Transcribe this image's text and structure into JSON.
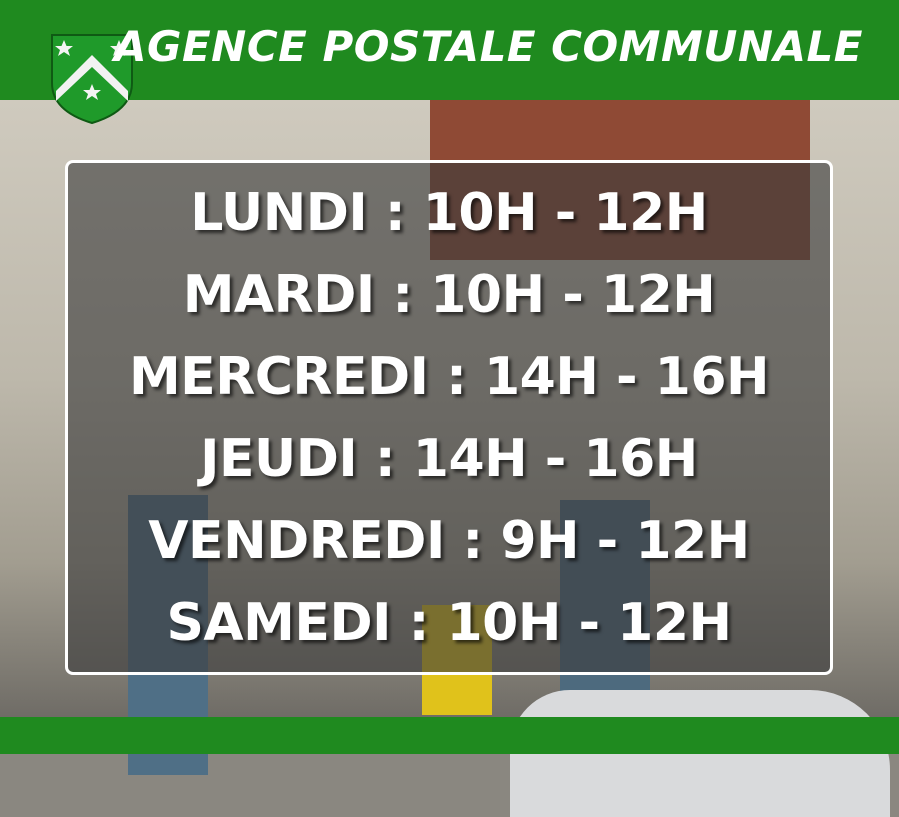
{
  "header": {
    "title": "AGENCE POSTALE COMMUNALE",
    "logo": "coat-of-arms-green-chevron-three-stars"
  },
  "colors": {
    "brand_green": "#1f8a1f",
    "text": "#ffffff"
  },
  "schedule": [
    {
      "text": "LUNDI : 10H - 12H"
    },
    {
      "text": "MARDI : 10H - 12H"
    },
    {
      "text": "MERCREDI : 14H - 16H"
    },
    {
      "text": "JEUDI : 14H - 16H"
    },
    {
      "text": "VENDREDI : 9H - 12H"
    },
    {
      "text": "SAMEDI : 10H - 12H"
    }
  ]
}
